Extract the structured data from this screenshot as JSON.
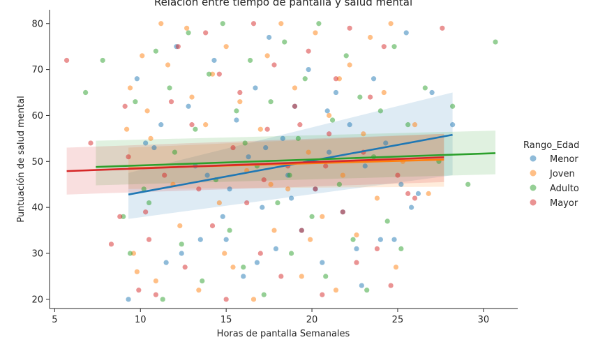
{
  "chart_data": {
    "type": "scatter",
    "title": "Relación entre tiempo de pantalla y salud mental",
    "xlabel": "Horas de pantalla Semanales",
    "ylabel": "Puntuación de salud mental",
    "xlim": [
      4.7,
      32.0
    ],
    "ylim": [
      18.0,
      83.0
    ],
    "xticks": [
      "5",
      "10",
      "15",
      "20",
      "25",
      "30"
    ],
    "yticks": [
      "20",
      "30",
      "40",
      "50",
      "60",
      "70",
      "80"
    ],
    "grid": false,
    "legend": {
      "title": "Rango_Edad",
      "placement": "right"
    },
    "series": [
      {
        "name": "Menor",
        "color": "#1f77b4",
        "regression": {
          "x": [
            9.3,
            28.2
          ],
          "y": [
            42.8,
            55.8
          ]
        },
        "ci": {
          "x": [
            9.3,
            28.2
          ],
          "upper": [
            47.5,
            65.0
          ],
          "lower": [
            37.5,
            47.0
          ]
        },
        "points": [
          [
            9.3,
            20
          ],
          [
            9.8,
            68
          ],
          [
            10.3,
            54
          ],
          [
            10.8,
            53
          ],
          [
            11.2,
            58
          ],
          [
            11.5,
            28
          ],
          [
            12.1,
            75
          ],
          [
            12.4,
            30
          ],
          [
            12.8,
            62
          ],
          [
            13.5,
            33
          ],
          [
            13.9,
            47
          ],
          [
            14.3,
            72
          ],
          [
            14.8,
            38
          ],
          [
            15.2,
            44
          ],
          [
            15.6,
            59
          ],
          [
            16.0,
            25
          ],
          [
            16.3,
            51
          ],
          [
            16.7,
            66
          ],
          [
            17.1,
            40
          ],
          [
            17.5,
            77
          ],
          [
            17.9,
            31
          ],
          [
            18.3,
            55
          ],
          [
            18.6,
            47
          ],
          [
            19.0,
            62
          ],
          [
            19.4,
            35
          ],
          [
            19.8,
            70
          ],
          [
            20.2,
            44
          ],
          [
            20.6,
            28
          ],
          [
            21.0,
            52
          ],
          [
            21.4,
            65
          ],
          [
            21.8,
            39
          ],
          [
            22.2,
            58
          ],
          [
            22.6,
            31
          ],
          [
            23.1,
            49
          ],
          [
            23.6,
            68
          ],
          [
            24.0,
            33
          ],
          [
            24.3,
            54
          ],
          [
            24.8,
            33
          ],
          [
            25.2,
            45
          ],
          [
            25.5,
            78
          ],
          [
            25.8,
            40
          ],
          [
            26.2,
            43
          ],
          [
            27.0,
            65
          ],
          [
            28.2,
            58
          ],
          [
            15.0,
            33
          ],
          [
            16.8,
            28
          ],
          [
            18.8,
            42
          ],
          [
            20.9,
            61
          ],
          [
            22.9,
            23
          ],
          [
            13.2,
            49
          ],
          [
            17.3,
            53
          ]
        ]
      },
      {
        "name": "Joven",
        "color": "#ff7f0e",
        "regression": {
          "x": [
            9.3,
            27.7
          ],
          "y": [
            48.5,
            50.4
          ]
        },
        "ci": {
          "x": [
            9.3,
            27.7
          ],
          "upper": [
            53.0,
            56.0
          ],
          "lower": [
            44.0,
            44.5
          ]
        },
        "points": [
          [
            9.2,
            57
          ],
          [
            9.4,
            66
          ],
          [
            9.6,
            30
          ],
          [
            9.8,
            26
          ],
          [
            10.1,
            73
          ],
          [
            10.4,
            61
          ],
          [
            10.6,
            55
          ],
          [
            10.9,
            24
          ],
          [
            11.2,
            80
          ],
          [
            11.6,
            71
          ],
          [
            11.9,
            45
          ],
          [
            12.3,
            36
          ],
          [
            12.7,
            79
          ],
          [
            13.0,
            64
          ],
          [
            13.4,
            22
          ],
          [
            13.8,
            58
          ],
          [
            14.2,
            69
          ],
          [
            14.6,
            41
          ],
          [
            15.0,
            75
          ],
          [
            15.4,
            27
          ],
          [
            15.8,
            63
          ],
          [
            16.2,
            48
          ],
          [
            16.6,
            20
          ],
          [
            17.0,
            57
          ],
          [
            17.4,
            73
          ],
          [
            17.8,
            35
          ],
          [
            18.2,
            80
          ],
          [
            18.6,
            44
          ],
          [
            19.0,
            66
          ],
          [
            19.4,
            25
          ],
          [
            19.8,
            52
          ],
          [
            20.2,
            78
          ],
          [
            20.6,
            38
          ],
          [
            21.0,
            60
          ],
          [
            21.4,
            22
          ],
          [
            21.8,
            47
          ],
          [
            22.2,
            71
          ],
          [
            22.6,
            34
          ],
          [
            23.0,
            56
          ],
          [
            23.4,
            77
          ],
          [
            23.8,
            42
          ],
          [
            24.2,
            65
          ],
          [
            24.6,
            80
          ],
          [
            24.9,
            27
          ],
          [
            25.3,
            50
          ],
          [
            26.0,
            58
          ],
          [
            26.8,
            43
          ],
          [
            14.9,
            30
          ],
          [
            17.6,
            45
          ],
          [
            19.9,
            33
          ],
          [
            21.6,
            68
          ]
        ]
      },
      {
        "name": "Adulto",
        "color": "#2ca02c",
        "regression": {
          "x": [
            7.4,
            30.7
          ],
          "y": [
            48.8,
            51.8
          ]
        },
        "ci": {
          "x": [
            7.4,
            30.7
          ],
          "upper": [
            54.5,
            56.7
          ],
          "lower": [
            44.8,
            47.2
          ]
        },
        "points": [
          [
            6.8,
            65
          ],
          [
            7.8,
            72
          ],
          [
            9.0,
            38
          ],
          [
            9.4,
            30
          ],
          [
            9.7,
            63
          ],
          [
            10.2,
            44
          ],
          [
            10.5,
            41
          ],
          [
            10.9,
            74
          ],
          [
            11.3,
            20
          ],
          [
            11.7,
            66
          ],
          [
            12.0,
            52
          ],
          [
            12.4,
            32
          ],
          [
            12.8,
            78
          ],
          [
            13.2,
            57
          ],
          [
            13.6,
            24
          ],
          [
            14.0,
            69
          ],
          [
            14.4,
            46
          ],
          [
            14.8,
            80
          ],
          [
            15.2,
            35
          ],
          [
            15.6,
            61
          ],
          [
            16.0,
            27
          ],
          [
            16.4,
            72
          ],
          [
            16.8,
            49
          ],
          [
            17.2,
            21
          ],
          [
            17.6,
            63
          ],
          [
            18.0,
            41
          ],
          [
            18.4,
            76
          ],
          [
            18.8,
            30
          ],
          [
            19.2,
            55
          ],
          [
            19.6,
            68
          ],
          [
            20.0,
            38
          ],
          [
            20.4,
            80
          ],
          [
            20.8,
            25
          ],
          [
            21.2,
            59
          ],
          [
            21.6,
            45
          ],
          [
            22.0,
            73
          ],
          [
            22.4,
            33
          ],
          [
            22.8,
            64
          ],
          [
            23.2,
            22
          ],
          [
            23.6,
            51
          ],
          [
            24.0,
            61
          ],
          [
            24.4,
            37
          ],
          [
            24.8,
            75
          ],
          [
            25.2,
            31
          ],
          [
            25.6,
            58
          ],
          [
            26.6,
            66
          ],
          [
            27.4,
            50
          ],
          [
            28.2,
            62
          ],
          [
            29.1,
            45
          ],
          [
            30.7,
            76
          ],
          [
            16.1,
            54
          ],
          [
            18.7,
            47
          ]
        ]
      },
      {
        "name": "Mayor",
        "color": "#d62728",
        "regression": {
          "x": [
            5.7,
            27.7
          ],
          "y": [
            47.9,
            50.9
          ]
        },
        "ci": {
          "x": [
            5.7,
            27.7
          ],
          "upper": [
            53.0,
            56.0
          ],
          "lower": [
            42.8,
            45.5
          ]
        },
        "points": [
          [
            5.7,
            72
          ],
          [
            7.1,
            54
          ],
          [
            8.3,
            32
          ],
          [
            8.8,
            38
          ],
          [
            9.1,
            62
          ],
          [
            9.3,
            51
          ],
          [
            9.9,
            22
          ],
          [
            10.3,
            39
          ],
          [
            10.5,
            33
          ],
          [
            10.9,
            21
          ],
          [
            11.4,
            47
          ],
          [
            11.8,
            63
          ],
          [
            12.2,
            75
          ],
          [
            12.6,
            27
          ],
          [
            13.0,
            58
          ],
          [
            13.4,
            44
          ],
          [
            13.8,
            78
          ],
          [
            14.2,
            36
          ],
          [
            14.6,
            69
          ],
          [
            15.0,
            20
          ],
          [
            15.4,
            53
          ],
          [
            15.8,
            65
          ],
          [
            16.2,
            41
          ],
          [
            16.6,
            80
          ],
          [
            17.0,
            30
          ],
          [
            17.4,
            57
          ],
          [
            17.8,
            71
          ],
          [
            18.2,
            25
          ],
          [
            18.6,
            49
          ],
          [
            19.0,
            62
          ],
          [
            19.4,
            35
          ],
          [
            19.8,
            74
          ],
          [
            20.2,
            44
          ],
          [
            20.6,
            21
          ],
          [
            21.0,
            56
          ],
          [
            21.4,
            68
          ],
          [
            21.8,
            39
          ],
          [
            22.2,
            79
          ],
          [
            22.6,
            28
          ],
          [
            23.0,
            52
          ],
          [
            23.4,
            64
          ],
          [
            23.8,
            31
          ],
          [
            24.2,
            75
          ],
          [
            24.6,
            23
          ],
          [
            25.0,
            47
          ],
          [
            25.6,
            43
          ],
          [
            26.0,
            42
          ],
          [
            27.6,
            79
          ],
          [
            17.2,
            46
          ],
          [
            19.3,
            58
          ],
          [
            20.8,
            49
          ]
        ]
      }
    ]
  }
}
